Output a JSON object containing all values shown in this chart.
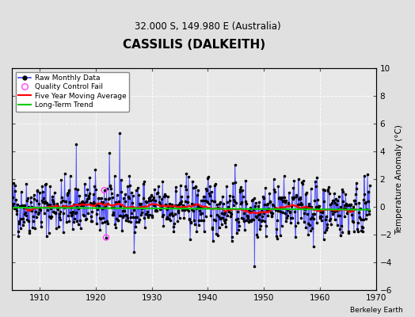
{
  "title": "CASSILIS (DALKEITH)",
  "subtitle": "32.000 S, 149.980 E (Australia)",
  "ylabel": "Temperature Anomaly (°C)",
  "watermark": "Berkeley Earth",
  "ylim": [
    -6,
    10
  ],
  "xlim": [
    1905,
    1970
  ],
  "xticks": [
    1910,
    1920,
    1930,
    1940,
    1950,
    1960,
    1970
  ],
  "yticks": [
    -6,
    -4,
    -2,
    0,
    2,
    4,
    6,
    8,
    10
  ],
  "bg_color": "#e0e0e0",
  "plot_bg_color": "#e8e8e8",
  "line_color": "#4444ff",
  "dot_color": "#000000",
  "ma_color": "#ff0000",
  "trend_color": "#00cc00",
  "qc_color": "#ff44ff",
  "seed": 42
}
